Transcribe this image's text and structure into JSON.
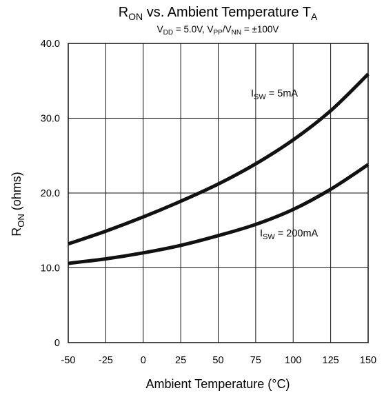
{
  "chart_data": {
    "type": "line",
    "title_parts": [
      "R",
      "ON",
      " vs. Ambient Temperature T",
      "A"
    ],
    "subtitle_parts": [
      "V",
      "DD",
      " = 5.0V, V",
      "PP",
      "/V",
      "NN",
      " = ±100V"
    ],
    "xlabel": "Ambient Temperature (°C)",
    "ylabel_parts": [
      "R",
      "ON",
      " (ohms)"
    ],
    "xlim": [
      -50,
      150
    ],
    "ylim": [
      0,
      40
    ],
    "x_ticks": [
      -50,
      -25,
      0,
      25,
      50,
      75,
      100,
      125,
      150
    ],
    "x_tick_labels": [
      "-50",
      "-25",
      "0",
      "25",
      "50",
      "75",
      "100",
      "125",
      "150"
    ],
    "y_ticks": [
      0,
      10,
      20,
      30,
      40
    ],
    "y_tick_labels": [
      "0",
      "10.0",
      "20.0",
      "30.0",
      "40.0"
    ],
    "grid": true,
    "series": [
      {
        "label_parts": [
          "I",
          "SW",
          " = 5mA"
        ],
        "x": [
          -50,
          -25,
          0,
          25,
          50,
          75,
          100,
          125,
          150
        ],
        "y": [
          13.2,
          14.9,
          16.8,
          18.9,
          21.2,
          23.9,
          27.1,
          31.0,
          35.9
        ]
      },
      {
        "label_parts": [
          "I",
          "SW",
          " = 200mA"
        ],
        "x": [
          -50,
          -25,
          0,
          25,
          50,
          75,
          100,
          125,
          150
        ],
        "y": [
          10.6,
          11.2,
          12.0,
          13.0,
          14.3,
          15.8,
          17.8,
          20.5,
          23.8
        ]
      }
    ],
    "line_color": "#111111"
  }
}
